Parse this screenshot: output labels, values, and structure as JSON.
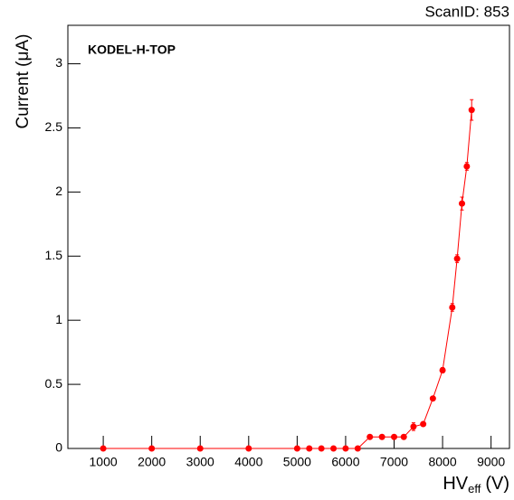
{
  "chart_data": {
    "type": "line",
    "scan_label": "ScanID: 853",
    "annotation": "KODEL-H-TOP",
    "y_label": "Current (μA)",
    "x_label": {
      "main": "HV",
      "sub": "eff",
      "unit": "(V)"
    },
    "x": [
      1000,
      2000,
      3000,
      4000,
      5000,
      5250,
      5500,
      5750,
      6000,
      6250,
      6500,
      6750,
      7000,
      7200,
      7400,
      7600,
      7800,
      8000,
      8200,
      8300,
      8400,
      8500,
      8600
    ],
    "series": [
      {
        "color": "#ff0000",
        "values": [
          0,
          0,
          0,
          0,
          0,
          0,
          0,
          0,
          0,
          0,
          0.09,
          0.09,
          0.09,
          0.09,
          0.17,
          0.19,
          0.39,
          0.61,
          1.1,
          1.48,
          1.91,
          2.2,
          2.64
        ],
        "errors": [
          0.005,
          0.005,
          0.005,
          0.005,
          0.005,
          0.005,
          0.005,
          0.005,
          0.005,
          0.005,
          0.01,
          0.01,
          0.01,
          0.01,
          0.03,
          0.01,
          0.01,
          0.02,
          0.03,
          0.03,
          0.05,
          0.03,
          0.08
        ]
      }
    ],
    "xlim": [
      270,
      9380
    ],
    "ylim": [
      0,
      3.3
    ],
    "xticks": [
      1000,
      2000,
      3000,
      4000,
      5000,
      6000,
      7000,
      8000,
      9000
    ],
    "yticks": [
      0,
      0.5,
      1,
      1.5,
      2,
      2.5,
      3
    ]
  }
}
